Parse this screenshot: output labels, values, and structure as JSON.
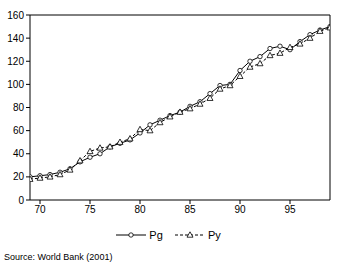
{
  "chart_data": {
    "type": "line",
    "x": [
      1969,
      1970,
      1971,
      1972,
      1973,
      1974,
      1975,
      1976,
      1977,
      1978,
      1979,
      1980,
      1981,
      1982,
      1983,
      1984,
      1985,
      1986,
      1987,
      1988,
      1989,
      1990,
      1991,
      1992,
      1993,
      1994,
      1995,
      1996,
      1997,
      1998,
      1999
    ],
    "series": [
      {
        "name": "Pg",
        "color": "#000000",
        "marker": "circle",
        "line_style": "solid",
        "values": [
          20,
          21,
          22,
          24,
          27,
          33,
          37,
          40,
          46,
          49,
          52,
          58,
          65,
          69,
          73,
          76,
          81,
          85,
          92,
          99,
          100,
          112,
          120,
          124,
          131,
          133,
          130,
          137,
          143,
          147,
          150
        ]
      },
      {
        "name": "Py",
        "color": "#000000",
        "marker": "triangle",
        "line_style": "dashed",
        "values": [
          18,
          19,
          20,
          22,
          26,
          34,
          42,
          45,
          46,
          50,
          53,
          61,
          60,
          67,
          72,
          76,
          79,
          83,
          88,
          96,
          99,
          107,
          115,
          118,
          125,
          127,
          132,
          135,
          140,
          146,
          149
        ]
      }
    ],
    "xlim": [
      1969,
      1999
    ],
    "xticks": [
      {
        "value": 1970,
        "label": "70"
      },
      {
        "value": 1975,
        "label": "75"
      },
      {
        "value": 1980,
        "label": "80"
      },
      {
        "value": 1985,
        "label": "85"
      },
      {
        "value": 1990,
        "label": "90"
      },
      {
        "value": 1995,
        "label": "95"
      }
    ],
    "ylim": [
      0,
      160
    ],
    "yticks": [
      0,
      20,
      40,
      60,
      80,
      100,
      120,
      140,
      160
    ],
    "grid": false,
    "legend": "bottom",
    "annotations": [
      "Source: World Bank (2001)"
    ]
  }
}
